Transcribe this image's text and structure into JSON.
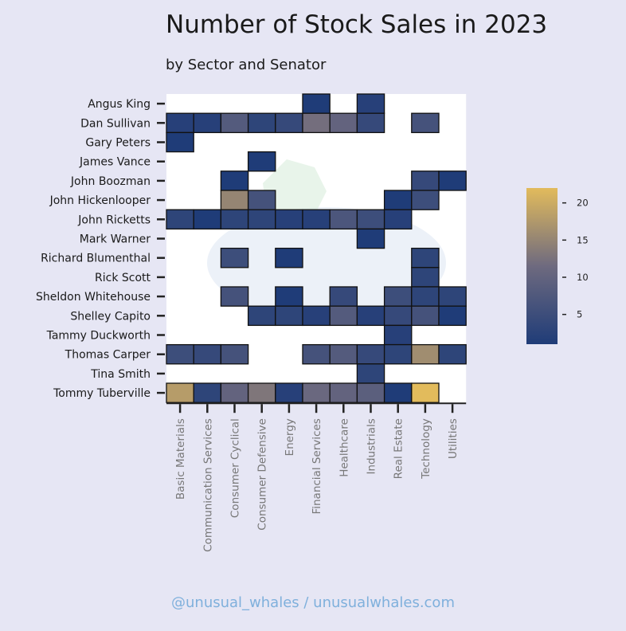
{
  "title": "Number of Stock Sales in 2023",
  "subtitle": "by Sector and Senator",
  "footer": "@unusual_whales / unusualwhales.com",
  "chart_data": {
    "type": "heatmap",
    "title": "Number of Stock Sales in 2023",
    "subtitle": "by Sector and Senator",
    "rows": [
      "Angus King",
      "Dan Sullivan",
      "Gary Peters",
      "James Vance",
      "John Boozman",
      "John Hickenlooper",
      "John Ricketts",
      "Mark Warner",
      "Richard Blumenthal",
      "Rick Scott",
      "Sheldon Whitehouse",
      "Shelley Capito",
      "Tammy Duckworth",
      "Thomas Carper",
      "Tina Smith",
      "Tommy Tuberville"
    ],
    "columns": [
      "Basic Materials",
      "Communication Services",
      "Consumer Cyclical",
      "Consumer Defensive",
      "Energy",
      "Financial Services",
      "Healthcare",
      "Industrials",
      "Real Estate",
      "Technology",
      "Utilities"
    ],
    "values": [
      [
        null,
        null,
        null,
        null,
        null,
        1,
        null,
        2,
        null,
        null,
        null
      ],
      [
        2,
        2,
        8,
        3,
        4,
        12,
        10,
        4,
        null,
        6,
        null
      ],
      [
        1,
        null,
        null,
        null,
        null,
        null,
        null,
        null,
        null,
        null,
        null
      ],
      [
        null,
        null,
        null,
        1,
        null,
        null,
        null,
        null,
        null,
        null,
        null
      ],
      [
        null,
        null,
        1,
        null,
        null,
        null,
        null,
        null,
        null,
        4,
        1
      ],
      [
        null,
        null,
        15,
        6,
        null,
        null,
        null,
        null,
        1,
        5,
        null
      ],
      [
        3,
        1,
        3,
        3,
        2,
        2,
        7,
        5,
        2,
        null,
        null
      ],
      [
        null,
        null,
        null,
        null,
        null,
        null,
        null,
        1,
        null,
        null,
        null
      ],
      [
        null,
        null,
        5,
        null,
        1,
        null,
        null,
        null,
        null,
        3,
        null
      ],
      [
        null,
        null,
        null,
        null,
        null,
        null,
        null,
        null,
        null,
        3,
        null
      ],
      [
        null,
        null,
        6,
        null,
        1,
        null,
        4,
        null,
        5,
        3,
        3
      ],
      [
        null,
        null,
        null,
        3,
        3,
        2,
        8,
        2,
        4,
        6,
        1
      ],
      [
        null,
        null,
        null,
        null,
        null,
        null,
        null,
        null,
        2,
        null,
        null
      ],
      [
        5,
        4,
        6,
        null,
        null,
        6,
        8,
        4,
        3,
        16,
        3
      ],
      [
        null,
        null,
        null,
        null,
        null,
        null,
        null,
        3,
        null,
        null,
        null
      ],
      [
        18,
        3,
        10,
        13,
        2,
        11,
        10,
        9,
        1,
        22,
        null
      ]
    ],
    "colorbar": {
      "ticks": [
        5,
        10,
        15,
        20
      ],
      "min": 1,
      "max": 22,
      "colors": [
        "#1f3c78",
        "#6e6a7f",
        "#e2bb5c"
      ]
    },
    "grid": false
  }
}
